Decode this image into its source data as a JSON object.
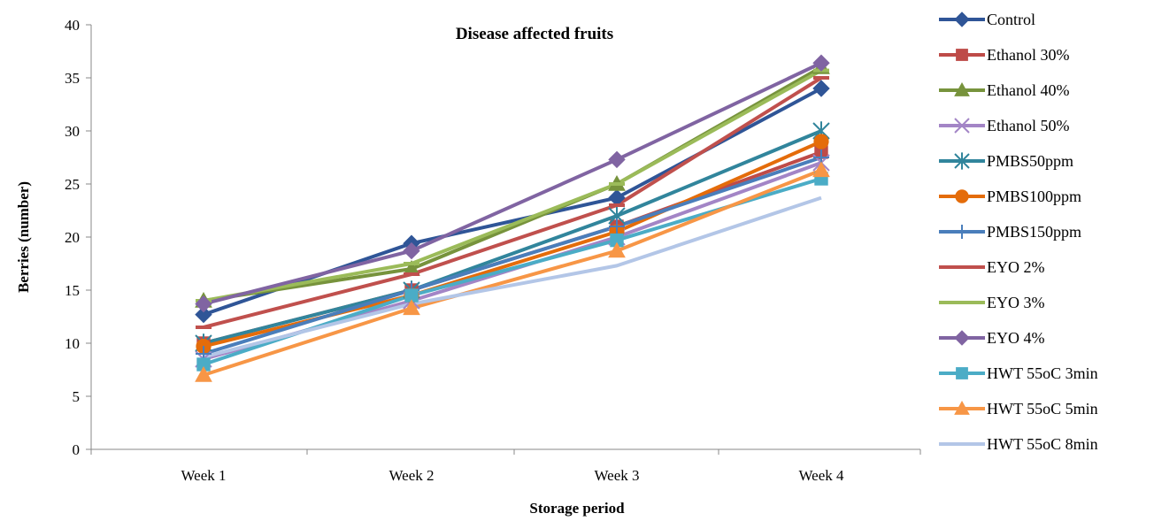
{
  "chart_data": {
    "type": "line",
    "title": "Disease affected fruits",
    "xlabel": "Storage period",
    "ylabel": "Berries (number)",
    "categories": [
      "Week 1",
      "Week 2",
      "Week 3",
      "Week 4"
    ],
    "ylim": [
      0,
      40
    ],
    "yticks": [
      "0",
      "5",
      "10",
      "15",
      "20",
      "25",
      "30",
      "35",
      "40"
    ],
    "grid": false,
    "legend_position": "right",
    "series": [
      {
        "name": "Control",
        "color": "#2f5597",
        "marker": "diamond",
        "values": [
          12.7,
          19.4,
          23.7,
          34.0
        ]
      },
      {
        "name": "Ethanol 30%",
        "color": "#be4b48",
        "marker": "square",
        "values": [
          10.0,
          15.0,
          21.0,
          28.0
        ]
      },
      {
        "name": "Ethanol 40%",
        "color": "#77933c",
        "marker": "triangle",
        "values": [
          14.0,
          17.0,
          25.0,
          36.0
        ]
      },
      {
        "name": "Ethanol 50%",
        "color": "#a385c6",
        "marker": "x",
        "values": [
          8.5,
          14.0,
          20.0,
          27.0
        ]
      },
      {
        "name": "PMBS50ppm",
        "color": "#31859c",
        "marker": "star",
        "values": [
          10.0,
          15.0,
          22.0,
          30.0
        ]
      },
      {
        "name": "PMBS100ppm",
        "color": "#e46c0a",
        "marker": "circle",
        "values": [
          9.7,
          14.5,
          20.5,
          29.0
        ]
      },
      {
        "name": "PMBS150ppm",
        "color": "#4a7ebb",
        "marker": "plus",
        "values": [
          9.0,
          15.0,
          21.0,
          27.5
        ]
      },
      {
        "name": "EYO 2%",
        "color": "#c0504d",
        "marker": "dash",
        "values": [
          11.5,
          16.5,
          23.0,
          35.0
        ]
      },
      {
        "name": "EYO 3%",
        "color": "#9bbb59",
        "marker": "dash",
        "values": [
          14.0,
          17.5,
          25.0,
          35.7
        ]
      },
      {
        "name": "EYO 4%",
        "color": "#8064a2",
        "marker": "diamond",
        "values": [
          13.7,
          18.7,
          27.3,
          36.4
        ]
      },
      {
        "name": "HWT 55oC 3min",
        "color": "#4bacc6",
        "marker": "square",
        "values": [
          8.0,
          14.5,
          19.7,
          25.5
        ]
      },
      {
        "name": "HWT 55oC 5min",
        "color": "#f79646",
        "marker": "triangle",
        "values": [
          7.0,
          13.3,
          18.7,
          26.3
        ]
      },
      {
        "name": "HWT 55oC 8min",
        "color": "#b3c6e7",
        "marker": "line",
        "values": [
          8.7,
          13.7,
          17.3,
          23.7
        ]
      }
    ]
  }
}
